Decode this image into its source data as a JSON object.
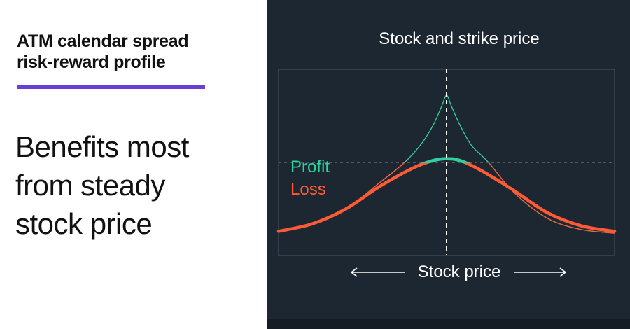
{
  "heading_lines": [
    "ATM calendar spread",
    "risk-reward profile"
  ],
  "subheading_lines": [
    "Benefits most",
    "from steady",
    "stock price"
  ],
  "colors": {
    "accent": "#6a3fd6",
    "panel_bg": "#1c2731",
    "profit": "#2ed2a0",
    "loss": "#ff5a36",
    "axis_text": "#ffffff"
  },
  "chart_data": {
    "type": "line",
    "title": "Stock and strike price",
    "xlabel": "Stock price",
    "legend": {
      "profit": "Profit",
      "loss": "Loss"
    },
    "xlim": [
      -1,
      1
    ],
    "ylim": [
      0,
      1
    ],
    "breakeven": 0.5,
    "strike": 0,
    "series": [
      {
        "name": "Profit",
        "x": [
          -1,
          -0.8,
          -0.6,
          -0.4,
          -0.25,
          -0.15,
          -0.08,
          -0.03,
          0,
          0.03,
          0.08,
          0.15,
          0.25,
          0.4,
          0.6,
          0.8,
          1
        ],
        "values": [
          0.13,
          0.17,
          0.25,
          0.39,
          0.5,
          0.6,
          0.7,
          0.8,
          0.86,
          0.8,
          0.7,
          0.59,
          0.5,
          0.34,
          0.2,
          0.14,
          0.12
        ]
      },
      {
        "name": "Loss",
        "x": [
          -1,
          -0.8,
          -0.6,
          -0.4,
          -0.2,
          -0.08,
          0,
          0.08,
          0.2,
          0.4,
          0.6,
          0.8,
          1
        ],
        "values": [
          0.13,
          0.17,
          0.25,
          0.37,
          0.47,
          0.51,
          0.52,
          0.51,
          0.46,
          0.35,
          0.23,
          0.16,
          0.13
        ]
      }
    ]
  }
}
